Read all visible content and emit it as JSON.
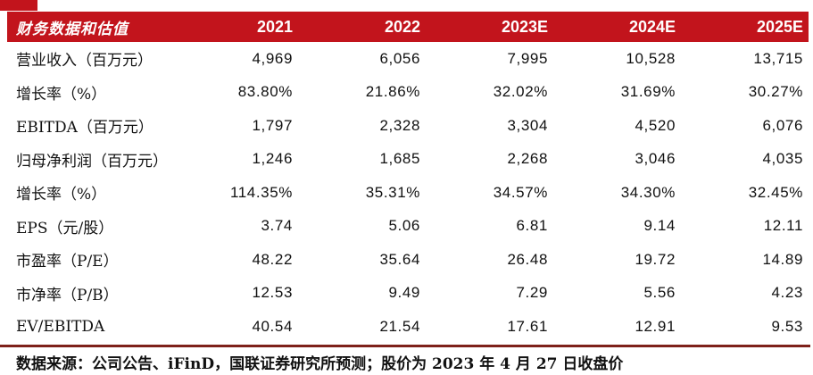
{
  "colors": {
    "header_red": "#c2141c",
    "divider_maroon": "#7e211b",
    "header_text": "#ffffff",
    "body_text": "#111111",
    "background": "#ffffff"
  },
  "table": {
    "header": {
      "title": "财务数据和估值",
      "columns": [
        "2021",
        "2022",
        "2023E",
        "2024E",
        "2025E"
      ]
    },
    "rows": [
      {
        "label": "营业收入（百万元）",
        "values": [
          "4,969",
          "6,056",
          "7,995",
          "10,528",
          "13,715"
        ]
      },
      {
        "label": "增长率（%）",
        "values": [
          "83.80%",
          "21.86%",
          "32.02%",
          "31.69%",
          "30.27%"
        ]
      },
      {
        "label": "EBITDA（百万元）",
        "values": [
          "1,797",
          "2,328",
          "3,304",
          "4,520",
          "6,076"
        ]
      },
      {
        "label": "归母净利润（百万元）",
        "values": [
          "1,246",
          "1,685",
          "2,268",
          "3,046",
          "4,035"
        ]
      },
      {
        "label": "增长率（%）",
        "values": [
          "114.35%",
          "35.31%",
          "34.57%",
          "34.30%",
          "32.45%"
        ]
      },
      {
        "label": "EPS（元/股）",
        "values": [
          "3.74",
          "5.06",
          "6.81",
          "9.14",
          "12.11"
        ]
      },
      {
        "label": "市盈率（P/E）",
        "values": [
          "48.22",
          "35.64",
          "26.48",
          "19.72",
          "14.89"
        ]
      },
      {
        "label": "市净率（P/B）",
        "values": [
          "12.53",
          "9.49",
          "7.29",
          "5.56",
          "4.23"
        ]
      },
      {
        "label": "EV/EBITDA",
        "values": [
          "40.54",
          "21.54",
          "17.61",
          "12.91",
          "9.53"
        ]
      }
    ]
  },
  "footer": {
    "source_note": "数据来源：公司公告、iFinD，国联证券研究所预测；股价为 2023 年 4 月 27 日收盘价"
  }
}
